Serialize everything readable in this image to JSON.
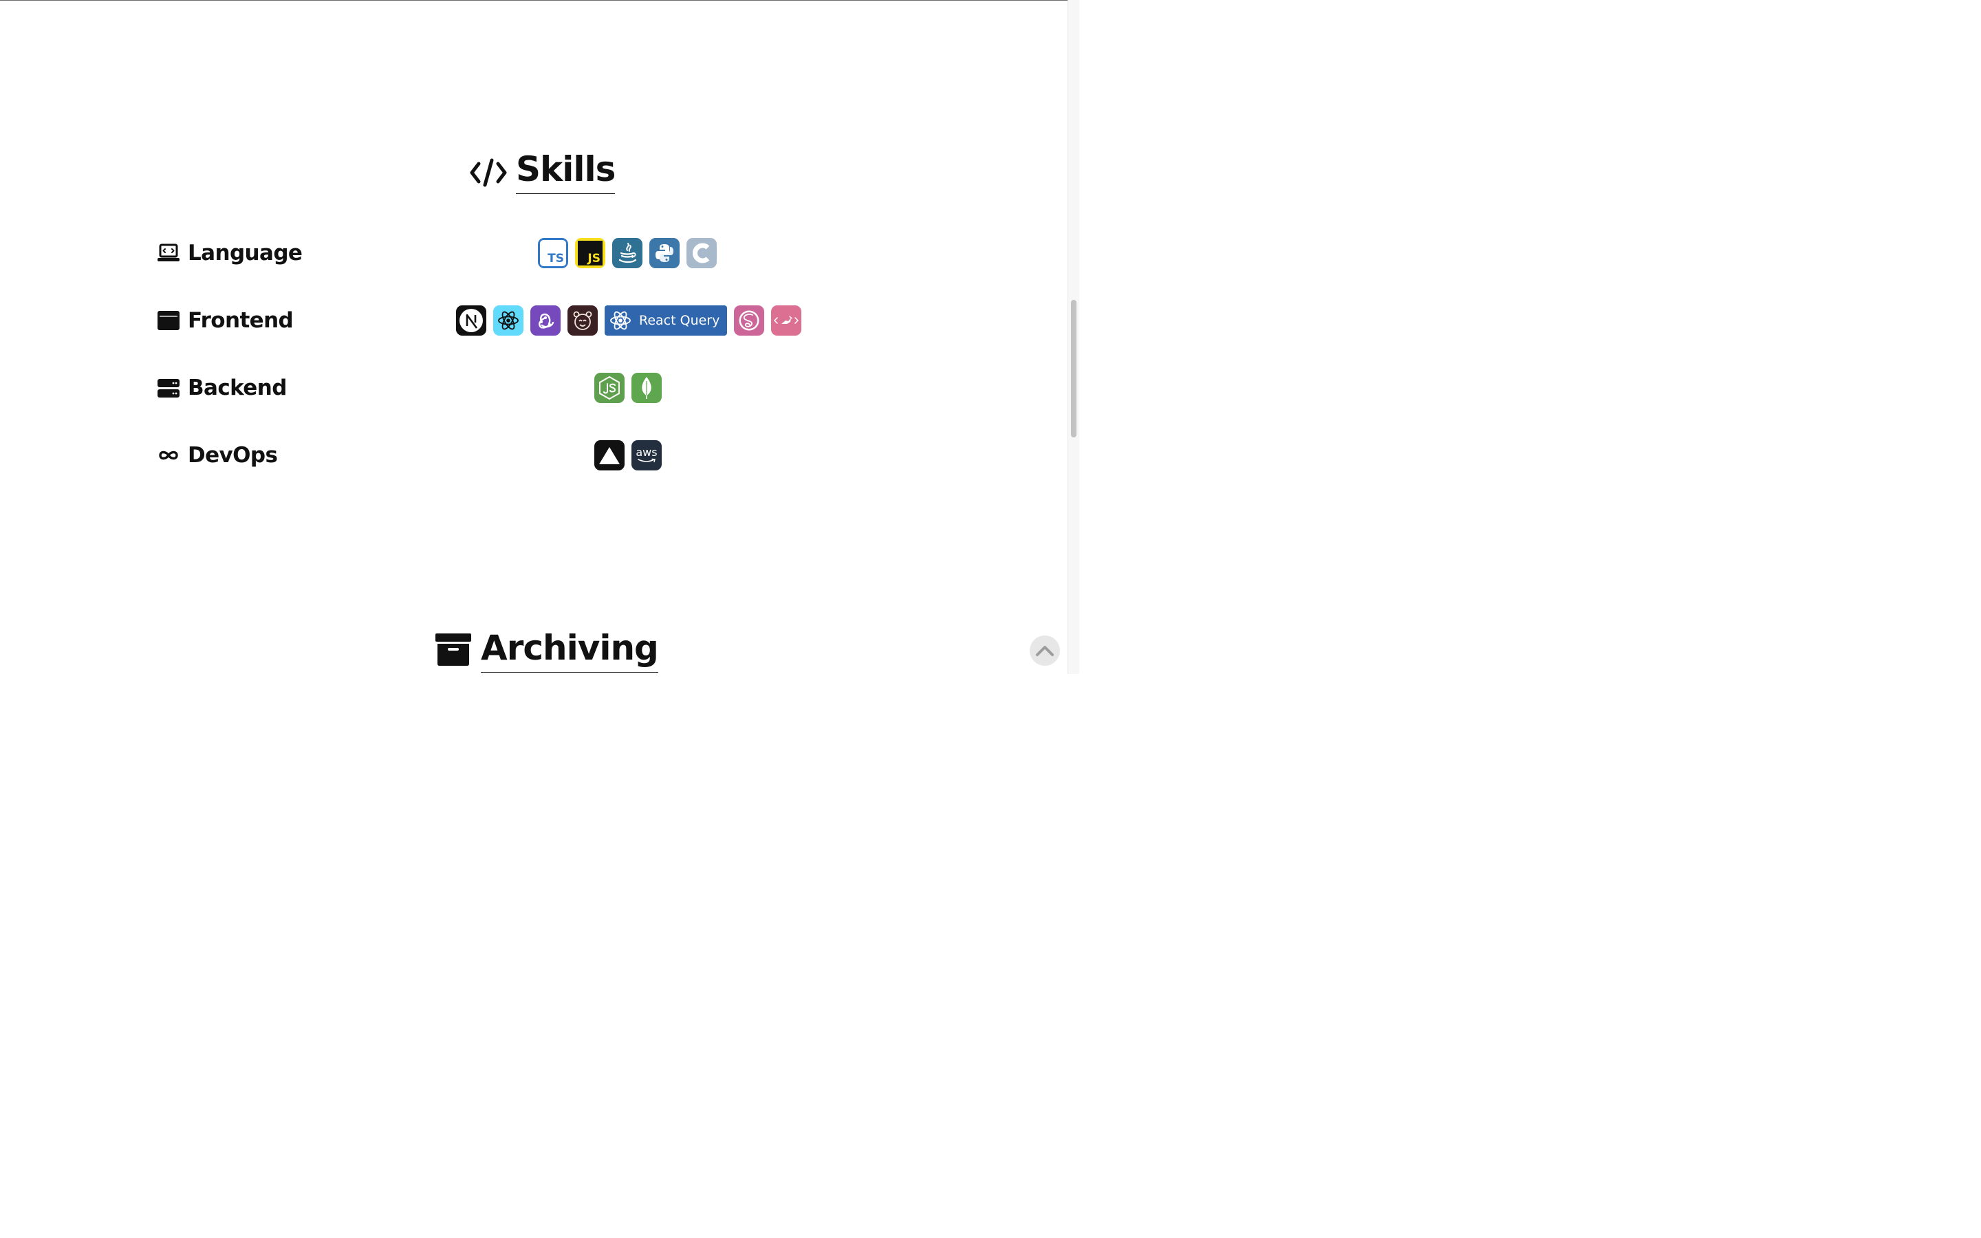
{
  "skills": {
    "title": "Skills",
    "icon": "code-icon",
    "categories": [
      {
        "key": "language",
        "label": "Language",
        "icon": "laptop-code-icon",
        "items": [
          "TypeScript",
          "JavaScript",
          "Java",
          "Python",
          "C"
        ]
      },
      {
        "key": "frontend",
        "label": "Frontend",
        "icon": "browser-window-icon",
        "items": [
          "Next.js",
          "React",
          "Redux",
          "Recoil",
          "React Query",
          "Sass",
          "Styled Components"
        ]
      },
      {
        "key": "backend",
        "label": "Backend",
        "icon": "server-icon",
        "items": [
          "Node.js",
          "MongoDB"
        ]
      },
      {
        "key": "devops",
        "label": "DevOps",
        "icon": "infinity-icon",
        "items": [
          "Vercel",
          "AWS"
        ]
      }
    ],
    "badge_text": {
      "typescript": "TS",
      "javascript": "JS",
      "react_query": "React Query",
      "aws": "aws"
    }
  },
  "archiving": {
    "title": "Archiving",
    "icon": "archive-box-icon"
  },
  "scroll_top": {
    "icon": "chevron-up-icon"
  },
  "colors": {
    "typescript": "#3178c6",
    "javascript_bg": "#f7df1e",
    "java": "#2f7193",
    "python": "#3b77a8",
    "c": "#a8b9cc",
    "react": "#61dafb",
    "redux": "#764abc",
    "recoil": "#3b2024",
    "react_query": "#2f66ad",
    "sass": "#cc6699",
    "styled_components": "#db7093",
    "nodejs": "#5fa04e",
    "mongodb": "#5ea74e",
    "aws": "#232f3e"
  }
}
